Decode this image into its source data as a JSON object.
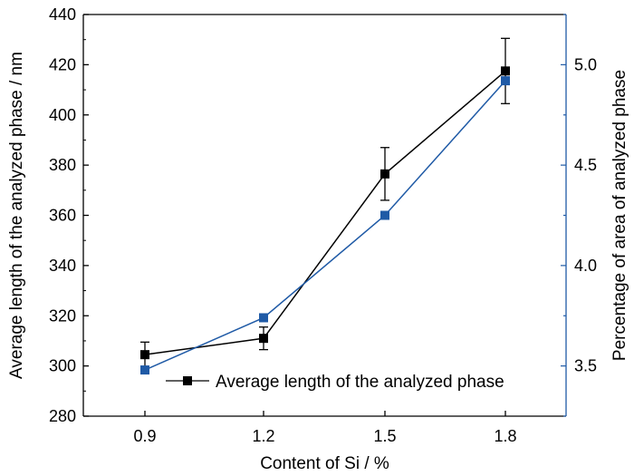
{
  "chart_data": {
    "type": "line",
    "categories": [
      "0.9",
      "1.2",
      "1.5",
      "1.8"
    ],
    "xlabel": "Content of Si / %",
    "ylabel": "Average length of the analyzed phase / nm",
    "ylabel_right": "Percentage of area of analyzed phase",
    "ylim": [
      280,
      440
    ],
    "yticks": [
      "280",
      "300",
      "320",
      "340",
      "360",
      "380",
      "400",
      "420",
      "440"
    ],
    "ylim_right": [
      3.25,
      5.25
    ],
    "yticks_right": [
      "3.5",
      "4.0",
      "4.5",
      "5.0"
    ],
    "legend_position": "bottom-right",
    "grid": false,
    "series": [
      {
        "name": "Average length of the analyzed phase",
        "axis": "left",
        "color": "#000000",
        "values": [
          304.5,
          311,
          376.5,
          417.5
        ],
        "error": [
          5,
          4.5,
          10.5,
          13
        ]
      },
      {
        "axis": "right",
        "color": "#1f5aa6",
        "values": [
          3.48,
          3.74,
          4.25,
          4.92
        ]
      }
    ]
  }
}
